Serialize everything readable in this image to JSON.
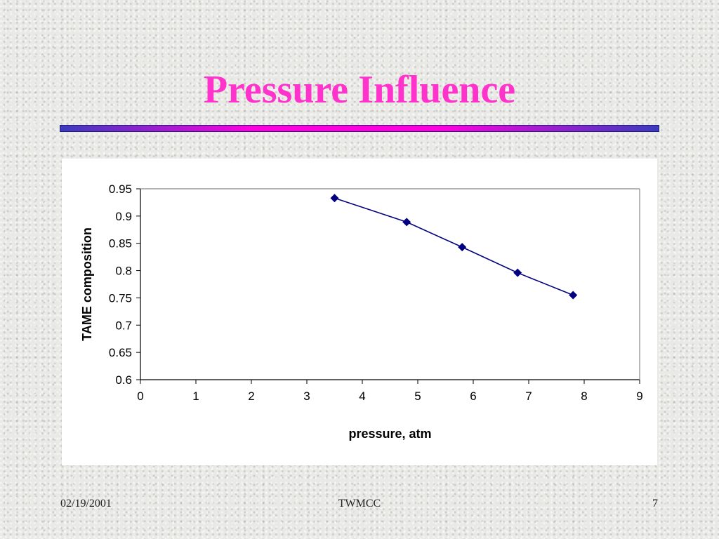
{
  "slide": {
    "title": "Pressure Influence",
    "footer_date": "02/19/2001",
    "footer_center": "TWMCC",
    "page_number": "7"
  },
  "colors": {
    "title": "#ff33cc",
    "series": "#000080"
  },
  "chart_data": {
    "type": "scatter",
    "title": "",
    "xlabel": "pressure, atm",
    "ylabel": "TAME composition",
    "xlim": [
      0,
      9
    ],
    "ylim": [
      0.6,
      0.95
    ],
    "x_ticks": [
      0,
      1,
      2,
      3,
      4,
      5,
      6,
      7,
      8,
      9
    ],
    "y_ticks": [
      0.6,
      0.65,
      0.7,
      0.75,
      0.8,
      0.85,
      0.9,
      0.95
    ],
    "grid": false,
    "legend": "none",
    "marker": "diamond",
    "series": [
      {
        "x": [
          3.5,
          4.8,
          5.8,
          6.8,
          7.8
        ],
        "y": [
          0.933,
          0.889,
          0.843,
          0.796,
          0.755
        ]
      }
    ]
  }
}
